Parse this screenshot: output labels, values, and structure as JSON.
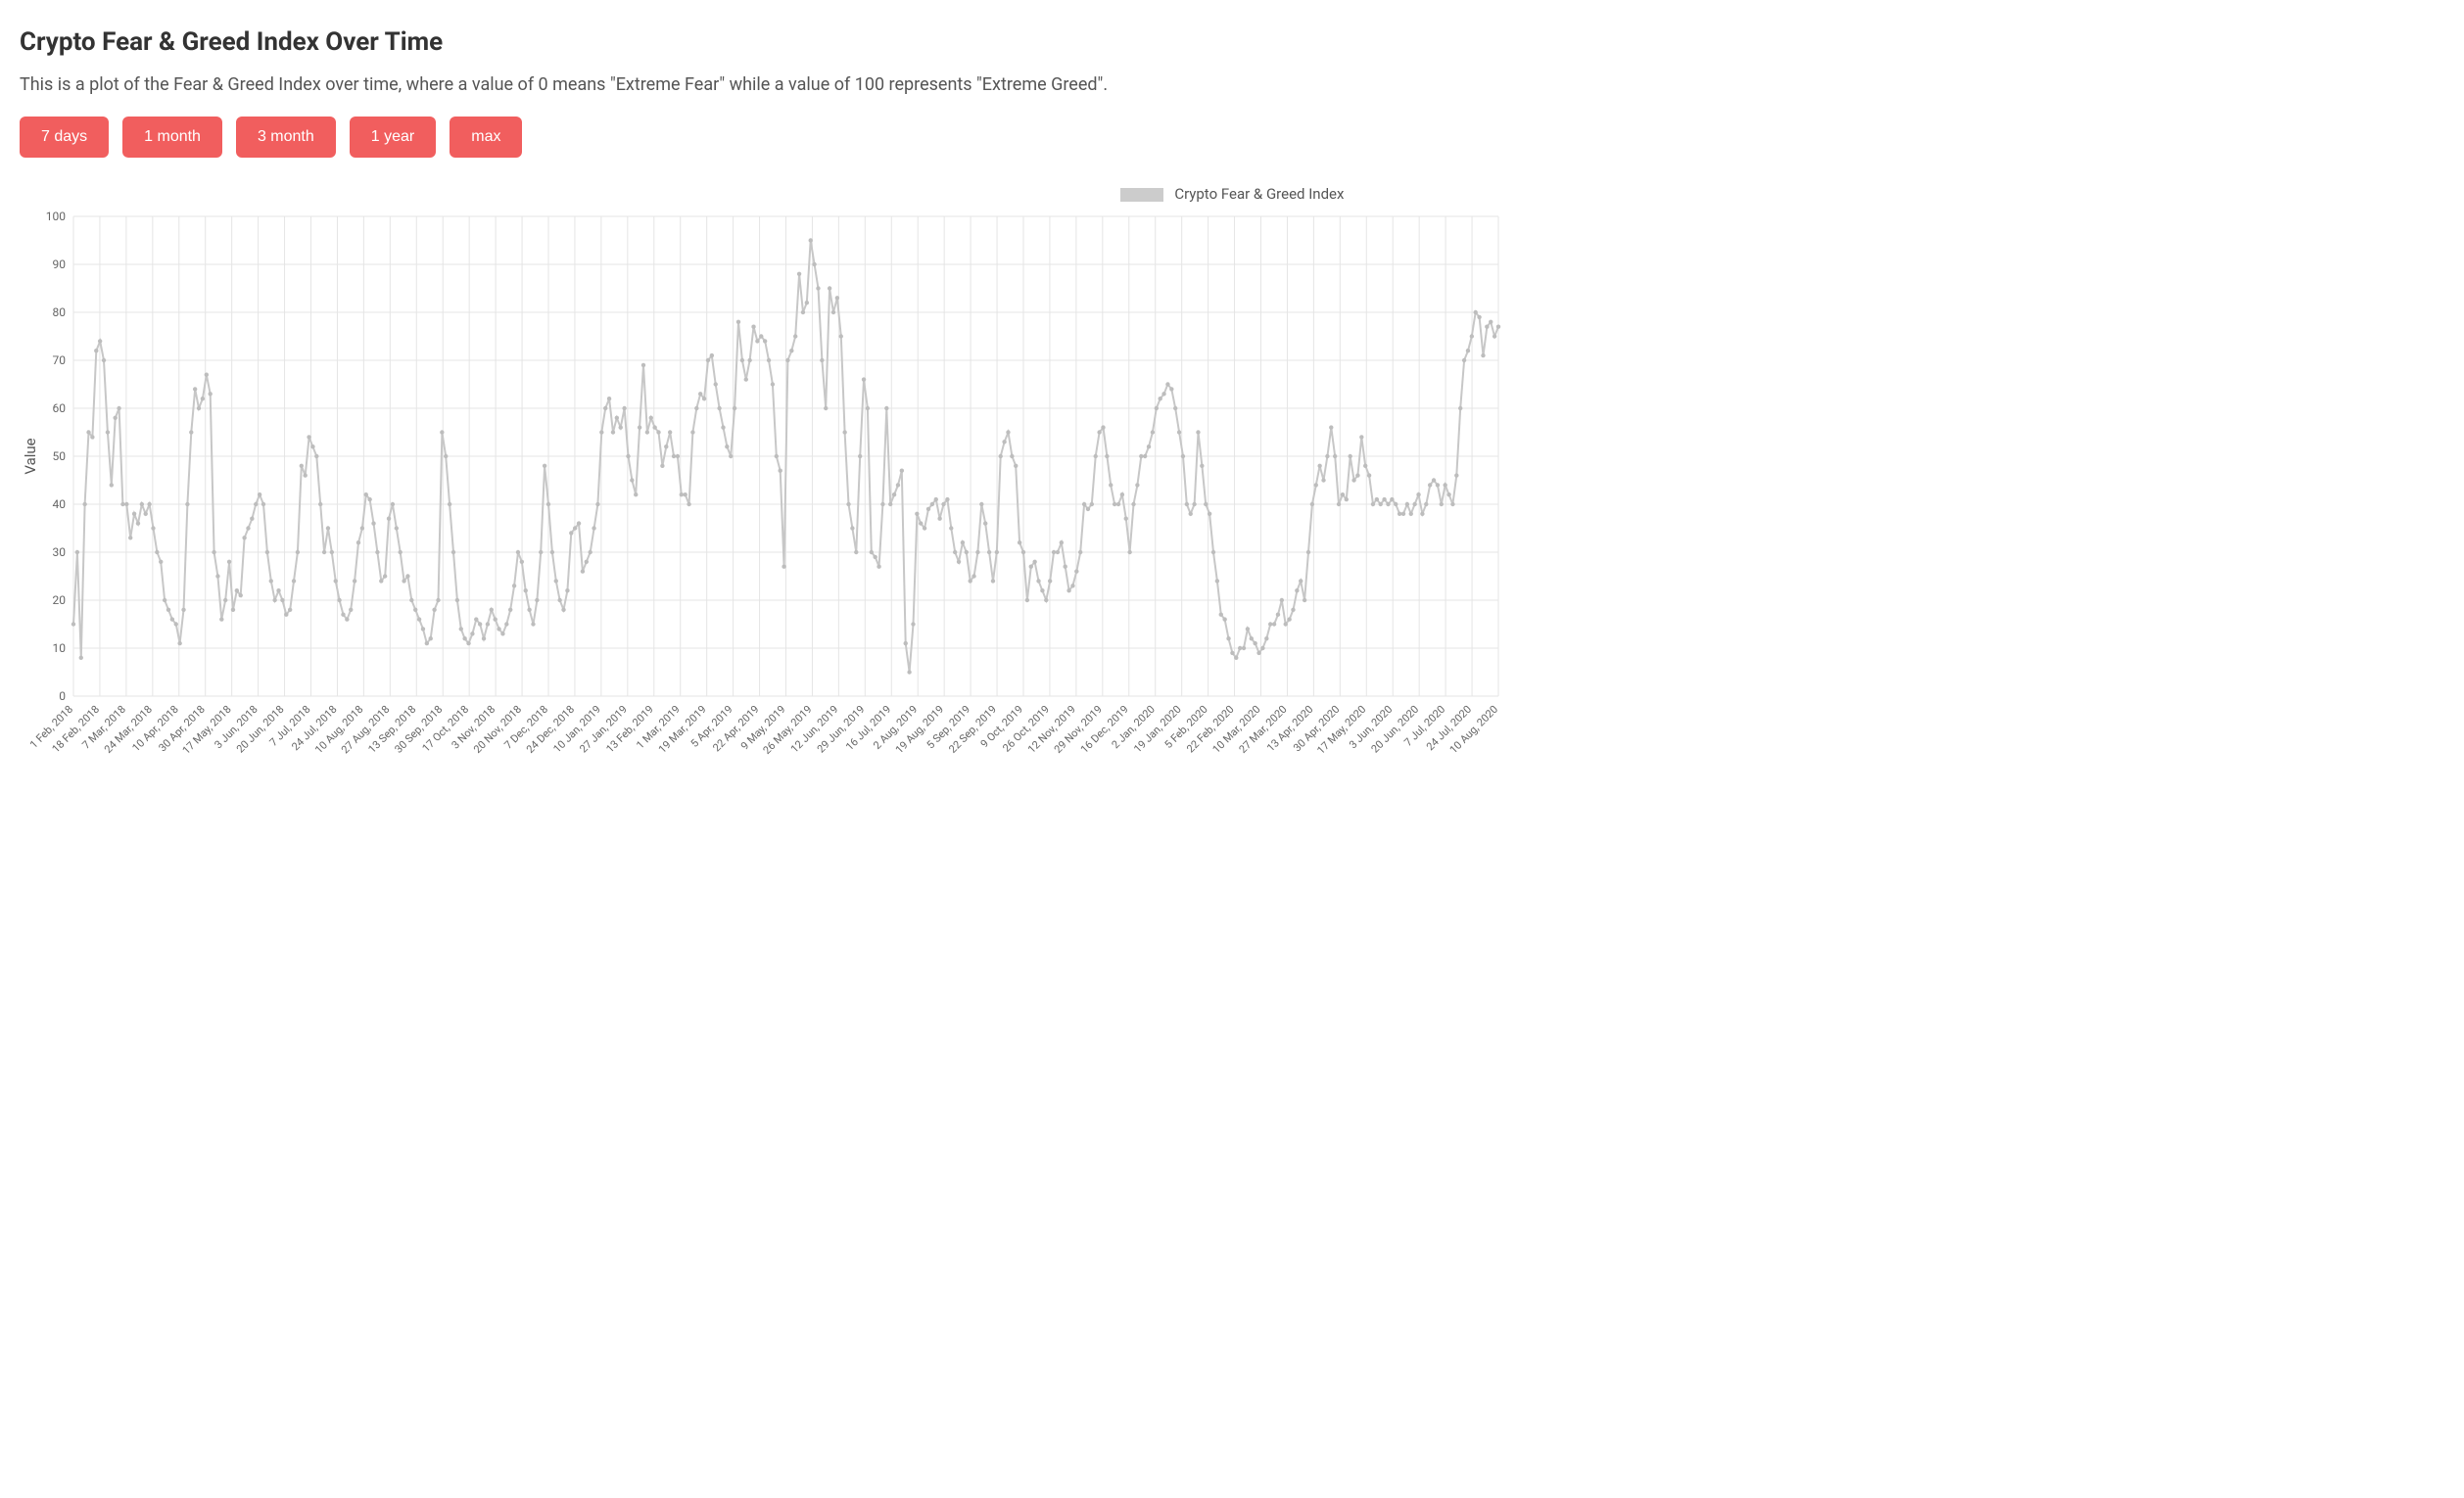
{
  "title": "Crypto Fear & Greed Index Over Time",
  "description": "This is a plot of the Fear & Greed Index over time, where a value of 0 means \"Extreme Fear\" while a value of 100 represents \"Extreme Greed\".",
  "buttons": [
    "7 days",
    "1 month",
    "3 month",
    "1 year",
    "max"
  ],
  "button_color": "#f15e5e",
  "button_text_color": "#ffffff",
  "chart": {
    "type": "line",
    "legend_label": "Crypto Fear & Greed Index",
    "legend_swatch_color": "#cccccc",
    "series_color": "#c7c7c7",
    "marker_color": "#bdbdbd",
    "marker_radius": 2.2,
    "line_width": 2,
    "background_color": "#ffffff",
    "grid_color": "#e5e5e5",
    "ylabel": "Value",
    "ylim": [
      0,
      100
    ],
    "ytick_step": 10,
    "x_labels": [
      "1 Feb, 2018",
      "18 Feb, 2018",
      "7 Mar, 2018",
      "24 Mar, 2018",
      "10 Apr, 2018",
      "30 Apr, 2018",
      "17 May, 2018",
      "3 Jun, 2018",
      "20 Jun, 2018",
      "7 Jul, 2018",
      "24 Jul, 2018",
      "10 Aug, 2018",
      "27 Aug, 2018",
      "13 Sep, 2018",
      "30 Sep, 2018",
      "17 Oct, 2018",
      "3 Nov, 2018",
      "20 Nov, 2018",
      "7 Dec, 2018",
      "24 Dec, 2018",
      "10 Jan, 2019",
      "27 Jan, 2019",
      "13 Feb, 2019",
      "1 Mar, 2019",
      "19 Mar, 2019",
      "5 Apr, 2019",
      "22 Apr, 2019",
      "9 May, 2019",
      "26 May, 2019",
      "12 Jun, 2019",
      "29 Jun, 2019",
      "16 Jul, 2019",
      "2 Aug, 2019",
      "19 Aug, 2019",
      "5 Sep, 2019",
      "22 Sep, 2019",
      "9 Oct, 2019",
      "26 Oct, 2019",
      "12 Nov, 2019",
      "29 Nov, 2019",
      "16 Dec, 2019",
      "2 Jan, 2020",
      "19 Jan, 2020",
      "5 Feb, 2020",
      "22 Feb, 2020",
      "10 Mar, 2020",
      "27 Mar, 2020",
      "13 Apr, 2020",
      "30 Apr, 2020",
      "17 May, 2020",
      "3 Jun, 2020",
      "20 Jun, 2020",
      "7 Jul, 2020",
      "24 Jul, 2020",
      "10 Aug, 2020"
    ],
    "values": [
      15,
      30,
      8,
      40,
      55,
      54,
      72,
      74,
      70,
      55,
      44,
      58,
      60,
      40,
      40,
      33,
      38,
      36,
      40,
      38,
      40,
      35,
      30,
      28,
      20,
      18,
      16,
      15,
      11,
      18,
      40,
      55,
      64,
      60,
      62,
      67,
      63,
      30,
      25,
      16,
      20,
      28,
      18,
      22,
      21,
      33,
      35,
      37,
      40,
      42,
      40,
      30,
      24,
      20,
      22,
      20,
      17,
      18,
      24,
      30,
      48,
      46,
      54,
      52,
      50,
      40,
      30,
      35,
      30,
      24,
      20,
      17,
      16,
      18,
      24,
      32,
      35,
      42,
      41,
      36,
      30,
      24,
      25,
      37,
      40,
      35,
      30,
      24,
      25,
      20,
      18,
      16,
      14,
      11,
      12,
      18,
      20,
      55,
      50,
      40,
      30,
      20,
      14,
      12,
      11,
      13,
      16,
      15,
      12,
      15,
      18,
      16,
      14,
      13,
      15,
      18,
      23,
      30,
      28,
      22,
      18,
      15,
      20,
      30,
      48,
      40,
      30,
      24,
      20,
      18,
      22,
      34,
      35,
      36,
      26,
      28,
      30,
      35,
      40,
      55,
      60,
      62,
      55,
      58,
      56,
      60,
      50,
      45,
      42,
      56,
      69,
      55,
      58,
      56,
      55,
      48,
      52,
      55,
      50,
      50,
      42,
      42,
      40,
      55,
      60,
      63,
      62,
      70,
      71,
      65,
      60,
      56,
      52,
      50,
      60,
      78,
      70,
      66,
      70,
      77,
      74,
      75,
      74,
      70,
      65,
      50,
      47,
      27,
      70,
      72,
      75,
      88,
      80,
      82,
      95,
      90,
      85,
      70,
      60,
      85,
      80,
      83,
      75,
      55,
      40,
      35,
      30,
      50,
      66,
      60,
      30,
      29,
      27,
      40,
      60,
      40,
      42,
      44,
      47,
      11,
      5,
      15,
      38,
      36,
      35,
      39,
      40,
      41,
      37,
      40,
      41,
      35,
      30,
      28,
      32,
      30,
      24,
      25,
      30,
      40,
      36,
      30,
      24,
      30,
      50,
      53,
      55,
      50,
      48,
      32,
      30,
      20,
      27,
      28,
      24,
      22,
      20,
      24,
      30,
      30,
      32,
      27,
      22,
      23,
      26,
      30,
      40,
      39,
      40,
      50,
      55,
      56,
      50,
      44,
      40,
      40,
      42,
      37,
      30,
      40,
      44,
      50,
      50,
      52,
      55,
      60,
      62,
      63,
      65,
      64,
      60,
      55,
      50,
      40,
      38,
      40,
      55,
      48,
      40,
      38,
      30,
      24,
      17,
      16,
      12,
      9,
      8,
      10,
      10,
      14,
      12,
      11,
      9,
      10,
      12,
      15,
      15,
      17,
      20,
      15,
      16,
      18,
      22,
      24,
      20,
      30,
      40,
      44,
      48,
      45,
      50,
      56,
      50,
      40,
      42,
      41,
      50,
      45,
      46,
      54,
      48,
      46,
      40,
      41,
      40,
      41,
      40,
      41,
      40,
      38,
      38,
      40,
      38,
      40,
      42,
      38,
      40,
      44,
      45,
      44,
      40,
      44,
      42,
      40,
      46,
      60,
      70,
      72,
      75,
      80,
      79,
      71,
      77,
      78,
      75,
      77
    ]
  }
}
